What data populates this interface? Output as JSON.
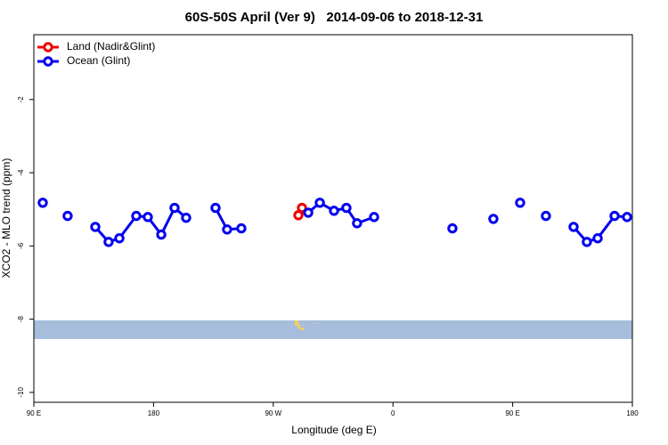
{
  "chart_data": {
    "type": "line",
    "title": "60S-50S April (Ver 9)   2014-09-06 to 2018-12-31",
    "x_label": "Longitude (deg E)",
    "y_label": "XCO2 - MLO trend (ppm)",
    "xlim": [
      90,
      540
    ],
    "xticks": [
      {
        "value": 90,
        "label": "90 E"
      },
      180,
      {
        "value": 270,
        "label": "90 W"
      },
      {
        "value": 360,
        "label": "0"
      },
      {
        "value": 450,
        "label": "90 E"
      },
      {
        "value": 540,
        "label": "180"
      }
    ],
    "ylim": [
      -10.27,
      -0.23
    ],
    "yticks": [
      -2,
      -4,
      -6,
      -8,
      -10
    ],
    "legend": "top-left",
    "series": [
      {
        "name": "Land (Nadir&Glint)",
        "color": "#ee0000",
        "x": [
          291.6,
          288.9
        ],
        "values": [
          -4.96,
          -5.16
        ]
      },
      {
        "name": "Ocean (Glint)",
        "color": "#0000ee",
        "x": [
          96.7,
          null,
          115.4,
          null,
          136.2,
          146.2,
          154.3,
          167.0,
          175.7,
          185.8,
          195.8,
          204.5,
          null,
          226.6,
          235.3,
          246.0,
          null,
          296.3,
          305.0,
          315.7,
          325.0,
          333.0,
          345.8,
          null,
          404.7,
          null,
          435.5,
          null,
          455.6,
          null,
          475.0,
          null,
          495.8,
          505.8,
          513.9,
          526.6,
          536.0
        ],
        "values": [
          -4.82,
          null,
          -5.18,
          null,
          -5.48,
          -5.89,
          -5.79,
          -5.18,
          -5.21,
          -5.69,
          -4.96,
          -5.23,
          null,
          -4.96,
          -5.55,
          -5.52,
          null,
          -5.09,
          -4.82,
          -5.04,
          -4.96,
          -5.38,
          -5.21,
          null,
          -5.52,
          null,
          -5.26,
          null,
          -4.82,
          null,
          -5.18,
          null,
          -5.48,
          -5.89,
          -5.79,
          -5.18,
          -5.21
        ]
      }
    ]
  }
}
